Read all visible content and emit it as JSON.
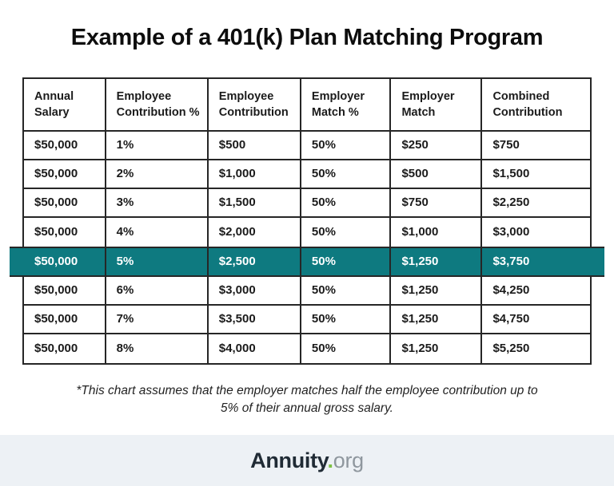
{
  "title": "Example of a 401(k) Plan Matching Program",
  "table": {
    "headers": [
      "Annual Salary",
      "Employee Contribution %",
      "Employee Contribution",
      "Employer Match %",
      "Employer Match",
      "Combined Contribution"
    ],
    "rows": [
      {
        "highlighted": false,
        "cells": [
          "$50,000",
          "1%",
          "$500",
          "50%",
          "$250",
          "$750"
        ]
      },
      {
        "highlighted": false,
        "cells": [
          "$50,000",
          "2%",
          "$1,000",
          "50%",
          "$500",
          "$1,500"
        ]
      },
      {
        "highlighted": false,
        "cells": [
          "$50,000",
          "3%",
          "$1,500",
          "50%",
          "$750",
          "$2,250"
        ]
      },
      {
        "highlighted": false,
        "cells": [
          "$50,000",
          "4%",
          "$2,000",
          "50%",
          "$1,000",
          "$3,000"
        ]
      },
      {
        "highlighted": true,
        "cells": [
          "$50,000",
          "5%",
          "$2,500",
          "50%",
          "$1,250",
          "$3,750"
        ]
      },
      {
        "highlighted": false,
        "cells": [
          "$50,000",
          "6%",
          "$3,000",
          "50%",
          "$1,250",
          "$4,250"
        ]
      },
      {
        "highlighted": false,
        "cells": [
          "$50,000",
          "7%",
          "$3,500",
          "50%",
          "$1,250",
          "$4,750"
        ]
      },
      {
        "highlighted": false,
        "cells": [
          "$50,000",
          "8%",
          "$4,000",
          "50%",
          "$1,250",
          "$5,250"
        ]
      }
    ]
  },
  "footnote": "*This chart assumes that the employer matches half the employee contribution up to 5% of their annual gross salary.",
  "footer": {
    "brand": "Annuity",
    "dot": ".",
    "tld": "org"
  },
  "colors": {
    "highlight_teal": "#0e7a80",
    "border_dark": "#262626",
    "footer_bg": "#edf1f5",
    "logo_green": "#7dc143",
    "logo_gray": "#8f979e"
  }
}
